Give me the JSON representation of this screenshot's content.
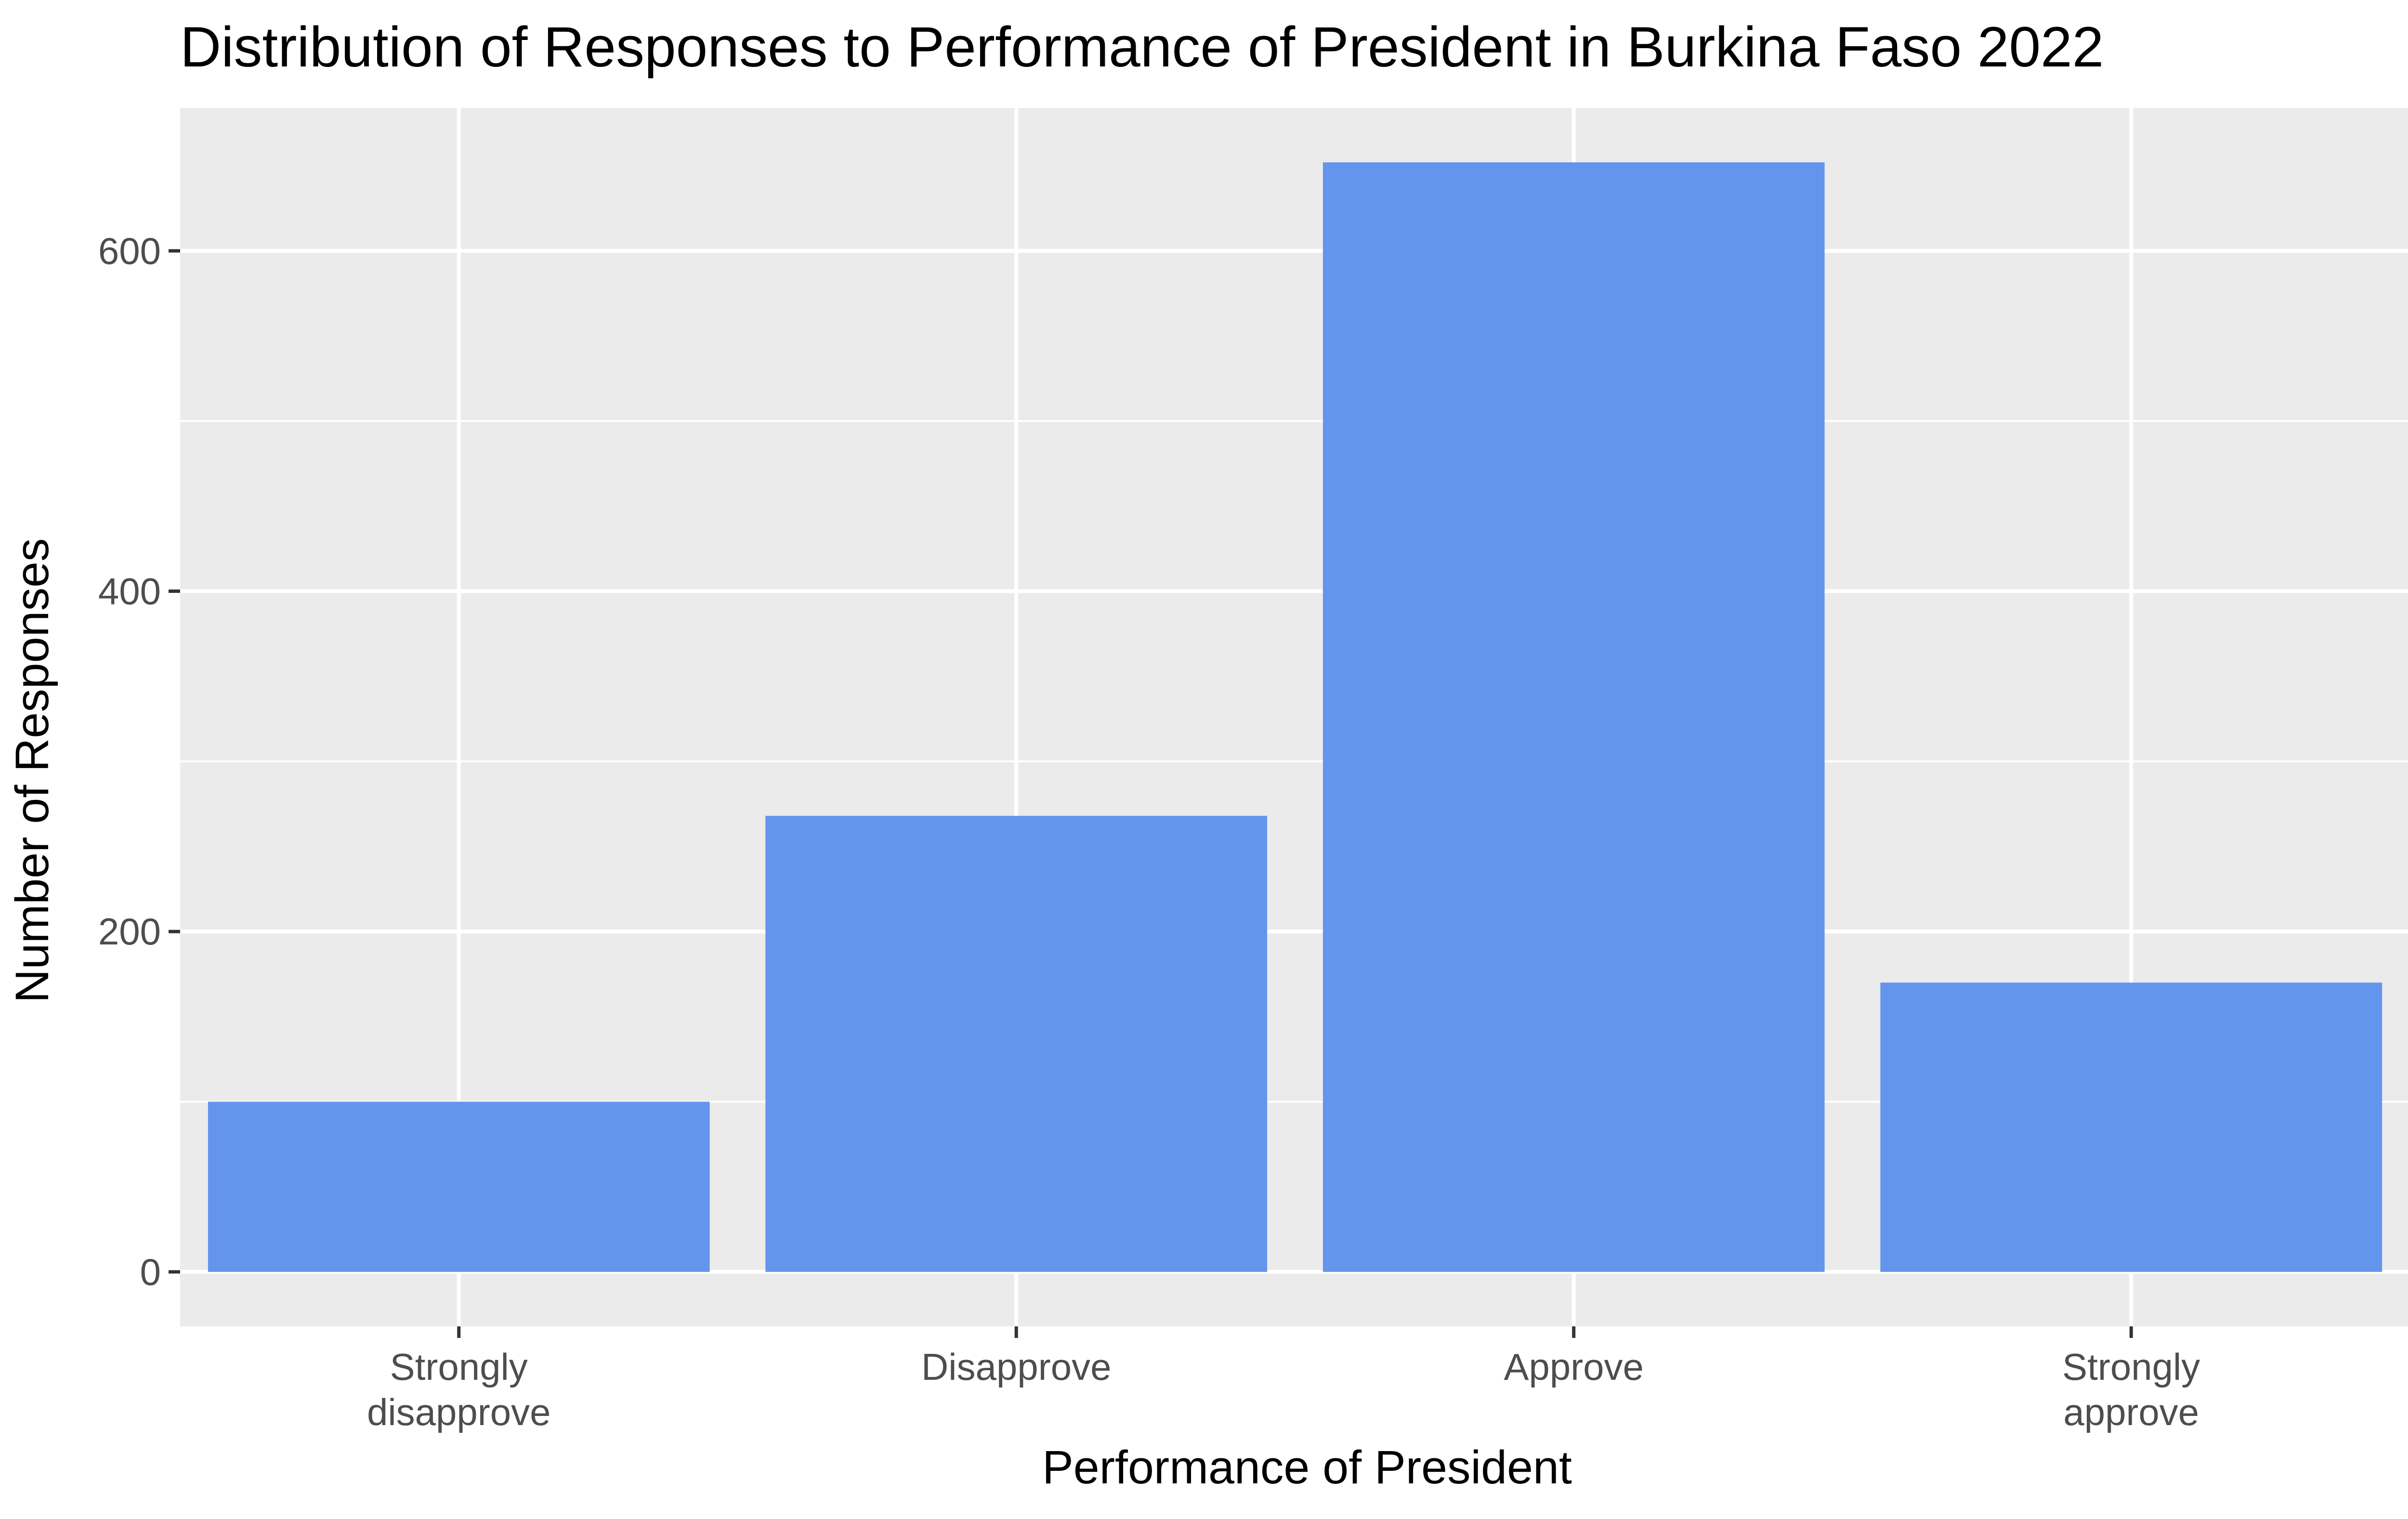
{
  "chart_data": {
    "type": "bar",
    "title": "Distribution of Responses to Performance of President in Burkina Faso 2022",
    "xlabel": "Performance of President",
    "ylabel": "Number of Responses",
    "categories": [
      [
        "Strongly",
        "disapprove"
      ],
      [
        "Disapprove"
      ],
      [
        "Approve"
      ],
      [
        "Strongly",
        "approve"
      ]
    ],
    "values": [
      100,
      268,
      652,
      170
    ],
    "ylim": [
      -32,
      684
    ],
    "y_ticks": [
      0,
      200,
      400,
      600
    ],
    "y_minor_ticks": [
      100,
      300,
      500
    ],
    "grid": true,
    "bar_color": "#6495ED",
    "panel_background": "#EBEBEB",
    "grid_color": "#FFFFFF"
  }
}
